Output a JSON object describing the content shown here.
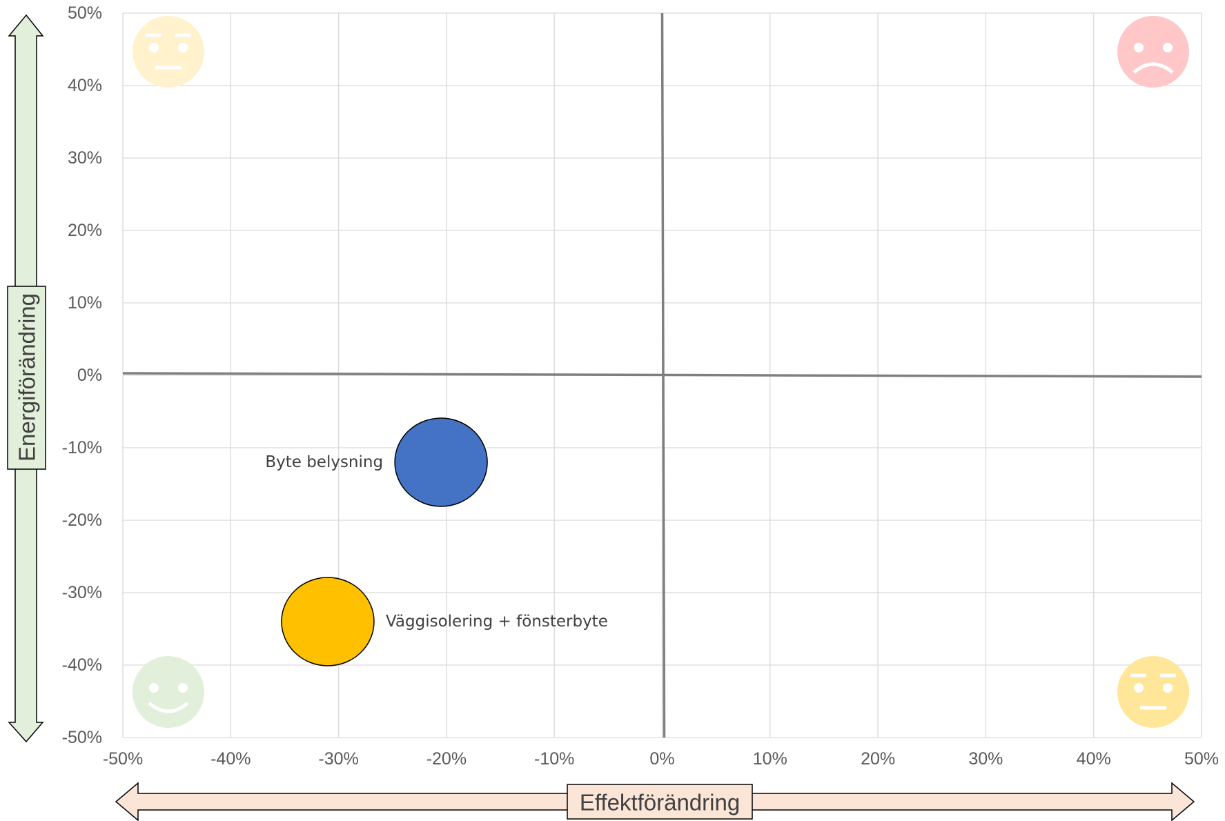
{
  "chart_data": {
    "type": "scatter",
    "title": "",
    "xlabel": "Effektförändring",
    "ylabel": "Energiförändring",
    "xlim": [
      -0.5,
      0.5
    ],
    "ylim": [
      -0.5,
      0.5
    ],
    "grid": true,
    "x_ticks": [
      "-50%",
      "-40%",
      "-30%",
      "-20%",
      "-10%",
      "0%",
      "10%",
      "20%",
      "30%",
      "40%",
      "50%"
    ],
    "y_ticks": [
      "50%",
      "40%",
      "30%",
      "20%",
      "10%",
      "0%",
      "-10%",
      "-20%",
      "-30%",
      "-40%",
      "-50%"
    ],
    "points": [
      {
        "label": "Byte belysning",
        "x": -0.205,
        "y": -0.12,
        "color": "#4472c4",
        "label_position": "left"
      },
      {
        "label": "Väggisolering + fönsterbyte",
        "x": -0.31,
        "y": -0.34,
        "color": "#ffc000",
        "label_position": "right"
      }
    ],
    "quadrant_icons": [
      {
        "name": "neutral-face-icon",
        "quadrant": "top-left",
        "color": "#fff2cc"
      },
      {
        "name": "sad-face-icon",
        "quadrant": "top-right",
        "color": "#ffc7c7"
      },
      {
        "name": "happy-face-icon",
        "quadrant": "bottom-left",
        "color": "#e2efda"
      },
      {
        "name": "neutral-face-icon",
        "quadrant": "bottom-right",
        "color": "#ffe699"
      }
    ],
    "colors": {
      "y_arrow_fill": "#e2efda",
      "x_arrow_fill": "#fbe5d6",
      "gridline": "#d9d9d9",
      "zero_axis": "#7f7f7f"
    }
  }
}
